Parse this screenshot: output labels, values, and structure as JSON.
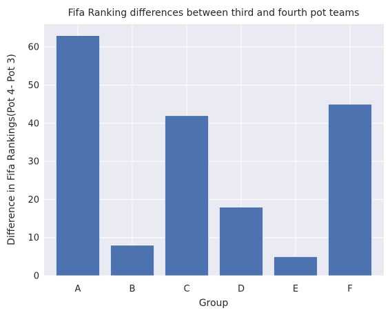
{
  "chart_data": {
    "type": "bar",
    "title": "Fifa Ranking differences between third and fourth pot teams",
    "xlabel": "Group",
    "ylabel": "Difference in Fifa Rankings(Pot 4- Pot 3)",
    "categories": [
      "A",
      "B",
      "C",
      "D",
      "E",
      "F"
    ],
    "values": [
      63,
      8,
      42,
      18,
      5,
      45
    ],
    "yticks": [
      0,
      10,
      20,
      30,
      40,
      50,
      60
    ],
    "ylim": [
      0,
      66
    ],
    "grid": true,
    "colors": {
      "bar": "#4c72b0",
      "plot_background": "#eaeaf2",
      "grid": "#ffffff"
    }
  }
}
